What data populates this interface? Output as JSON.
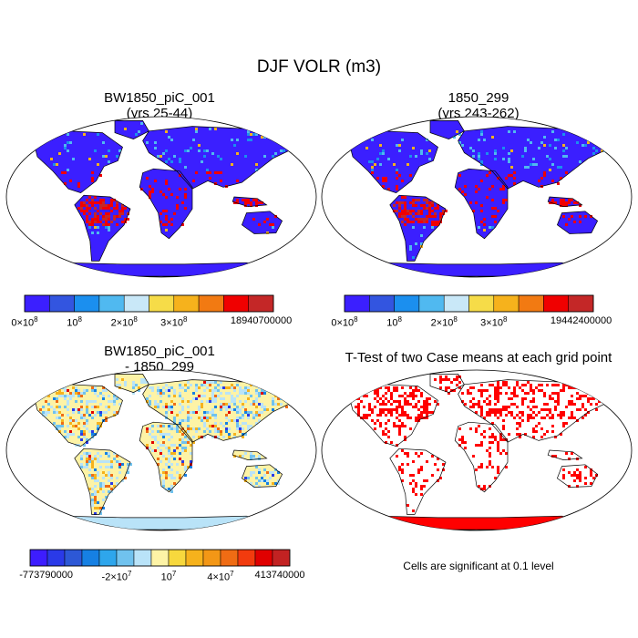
{
  "title": "DJF VOLR (m3)",
  "colors": {
    "ocean": "#ffffff",
    "coast": "#000000",
    "significant": "#ff0000",
    "field_scale": [
      "#3b1fff",
      "#3355e0",
      "#1b8fef",
      "#50b9f0",
      "#c9e8f8",
      "#f6dc48",
      "#f6b21c",
      "#f27a12",
      "#f00000",
      "#c42727"
    ],
    "diff_scale": [
      "#3d1dff",
      "#2a3ae8",
      "#2d58d6",
      "#1680e3",
      "#2ea6ec",
      "#70c2ee",
      "#b9e3f8",
      "#fdf3a6",
      "#f7d83d",
      "#f6b21c",
      "#f39716",
      "#ef6c14",
      "#f23b0e",
      "#e00000",
      "#c22222"
    ]
  },
  "chart_data": [
    {
      "type": "heatmap",
      "panel": "case1",
      "title_lines": [
        "BW1850_piC_001",
        "(yrs 25-44)"
      ],
      "projection": "Robinson",
      "colorbar": {
        "bins": 10,
        "tick_labels": [
          {
            "bin_edge": 0,
            "base": "0×10",
            "exp": "8"
          },
          {
            "bin_edge": 2,
            "base": "10",
            "exp": "8"
          },
          {
            "bin_edge": 4,
            "base": "2×10",
            "exp": "8"
          },
          {
            "bin_edge": 6,
            "base": "3×10",
            "exp": "8"
          },
          {
            "bin_edge": 10,
            "base": "18940700000",
            "exp": ""
          }
        ]
      }
    },
    {
      "type": "heatmap",
      "panel": "case2",
      "title_lines": [
        "1850_299",
        "(yrs 243-262)"
      ],
      "projection": "Robinson",
      "colorbar": {
        "bins": 10,
        "tick_labels": [
          {
            "bin_edge": 0,
            "base": "0×10",
            "exp": "8"
          },
          {
            "bin_edge": 2,
            "base": "10",
            "exp": "8"
          },
          {
            "bin_edge": 4,
            "base": "2×10",
            "exp": "8"
          },
          {
            "bin_edge": 6,
            "base": "3×10",
            "exp": "8"
          },
          {
            "bin_edge": 10,
            "base": "19442400000",
            "exp": ""
          }
        ]
      }
    },
    {
      "type": "heatmap",
      "panel": "difference",
      "title_lines": [
        "BW1850_piC_001",
        "- 1850_299"
      ],
      "projection": "Robinson",
      "colorbar": {
        "bins": 15,
        "tick_labels": [
          {
            "bin_edge": 0,
            "base": "-773790000",
            "exp": ""
          },
          {
            "bin_edge": 5,
            "base": "-2×10",
            "exp": "7"
          },
          {
            "bin_edge": 8,
            "base": "10",
            "exp": "7"
          },
          {
            "bin_edge": 11,
            "base": "4×10",
            "exp": "7"
          },
          {
            "bin_edge": 15,
            "base": "413740000",
            "exp": ""
          }
        ]
      }
    },
    {
      "type": "heatmap",
      "panel": "ttest",
      "title_lines": [
        "T-Test of two Case means at each grid point"
      ],
      "projection": "Robinson",
      "note": "Cells are significant at 0.1 level"
    }
  ]
}
